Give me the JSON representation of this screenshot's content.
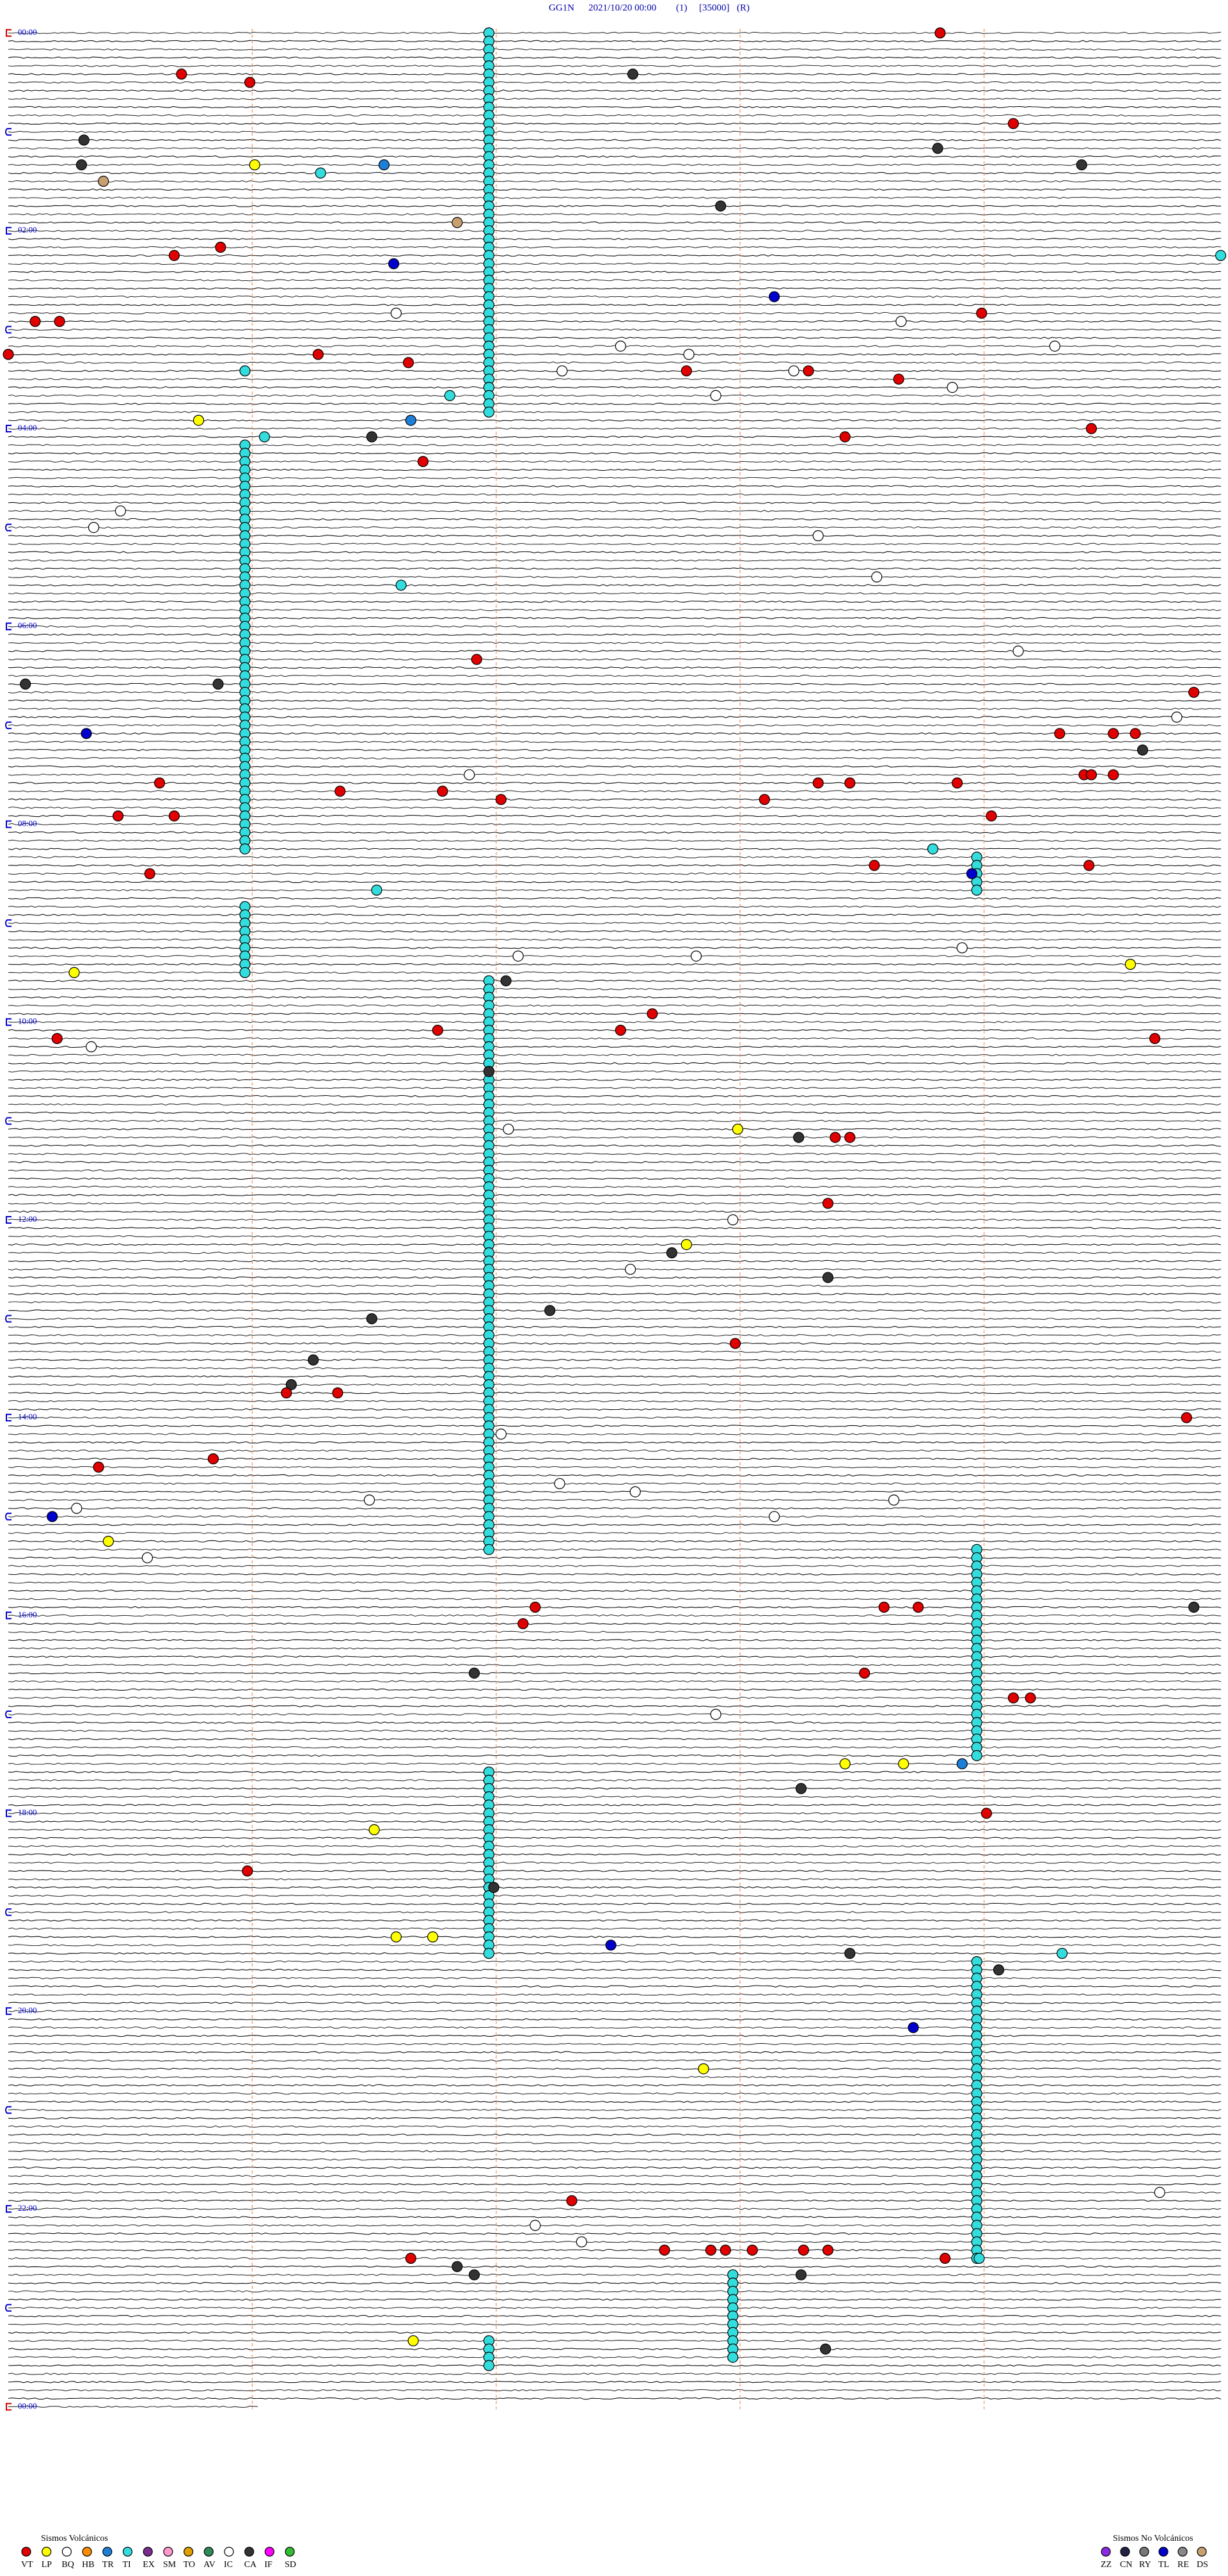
{
  "header": {
    "station": "GG1N",
    "datetime": "2021/10/20 00:00",
    "channel": "(1)",
    "scale": "[35000]",
    "mode": "(R)"
  },
  "hours": [
    "00:00",
    "02:00",
    "04:00",
    "06:00",
    "08:00",
    "10:00",
    "12:00",
    "14:00",
    "16:00",
    "18:00",
    "20:00",
    "22:00",
    "00:00"
  ],
  "legend_volcanic": {
    "title": "Sismos Volcánicos",
    "codes": [
      {
        "code": "VT",
        "color": "#e00000"
      },
      {
        "code": "LP",
        "color": "#ffff00"
      },
      {
        "code": "BQ",
        "color": "#ffffff"
      },
      {
        "code": "HB",
        "color": "#ff8c00"
      },
      {
        "code": "TR",
        "color": "#1e7fd8"
      },
      {
        "code": "TI",
        "color": "#33dddd"
      },
      {
        "code": "EX",
        "color": "#7b2d8e"
      },
      {
        "code": "SM",
        "color": "#ff99cc"
      },
      {
        "code": "TO",
        "color": "#e0a000"
      },
      {
        "code": "AV",
        "color": "#2e8b57"
      },
      {
        "code": "IC",
        "color": "#ffffff"
      },
      {
        "code": "CA",
        "color": "#333333"
      },
      {
        "code": "IF",
        "color": "#ff00ff"
      },
      {
        "code": "SD",
        "color": "#33bb33"
      }
    ]
  },
  "legend_non_volcanic": {
    "title": "Sismos No Volcánicos",
    "codes": [
      {
        "code": "ZZ",
        "color": "#8a2be2"
      },
      {
        "code": "CN",
        "color": "#222244"
      },
      {
        "code": "RY",
        "color": "#777777"
      },
      {
        "code": "TL",
        "color": "#0000cc"
      },
      {
        "code": "RE",
        "color": "#888888"
      },
      {
        "code": "DS",
        "color": "#c8a070"
      }
    ]
  },
  "runs": [
    {
      "code": "TI",
      "start": 1.97,
      "end": 231.97
    },
    {
      "code": "TI",
      "start": 250.97,
      "end": 495.97
    },
    {
      "code": "TI",
      "start": 503.97,
      "end": 523.97
    },
    {
      "code": "TI",
      "start": 530.97,
      "end": 570.97
    },
    {
      "code": "TI",
      "start": 576.97,
      "end": 921.97
    },
    {
      "code": "TI",
      "start": 923.97,
      "end": 1048.97
    },
    {
      "code": "TI",
      "start": 1056.97,
      "end": 1166.97
    },
    {
      "code": "TI",
      "start": 1173.97,
      "end": 1353.97
    },
    {
      "code": "TI",
      "start": 1362.97,
      "end": 1412.97
    },
    {
      "code": "TI",
      "start": 1401.97,
      "end": 1416.97
    }
  ],
  "events": [
    [
      "VT",
      3.82
    ],
    [
      "CA",
      27.56
    ],
    [
      "VT",
      25.71
    ],
    [
      "VT",
      30.99
    ],
    [
      "VT",
      59.12
    ],
    [
      "CA",
      65.31
    ],
    [
      "CA",
      73.81
    ],
    [
      "CA",
      80.3
    ],
    [
      "LP",
      81.01
    ],
    [
      "TR",
      81.54
    ],
    [
      "CA",
      84.4
    ],
    [
      "TI",
      86.28
    ],
    [
      "DS",
      90.39
    ],
    [
      "CA",
      107.92
    ],
    [
      "DS",
      116.84
    ],
    [
      "VT",
      135.68
    ],
    [
      "VT",
      130.87
    ],
    [
      "TL",
      141.58
    ],
    [
      "TI",
      139.97
    ],
    [
      "TL",
      163.14
    ],
    [
      "VT",
      173.99
    ],
    [
      "VT",
      175.11
    ],
    [
      "VT",
      175.21
    ],
    [
      "IC",
      171.59
    ],
    [
      "IC",
      178.66
    ],
    [
      "VT",
      195.0
    ],
    [
      "VT",
      196.27
    ],
    [
      "IC",
      192.51
    ],
    [
      "IC",
      197.79
    ],
    [
      "IC",
      194.29
    ],
    [
      "VT",
      201.64
    ],
    [
      "TI",
      205.97
    ],
    [
      "IC",
      207.27
    ],
    [
      "VT",
      207.78
    ],
    [
      "IC",
      208.22
    ],
    [
      "VT",
      208.28
    ],
    [
      "VT",
      213.65
    ],
    [
      "IC",
      218.87
    ],
    [
      "IC",
      222.9
    ],
    [
      "TI",
      221.81
    ],
    [
      "LP",
      235.78
    ],
    [
      "TR",
      236.65
    ],
    [
      "VT",
      244.44
    ],
    [
      "TI",
      246.05
    ],
    [
      "CA",
      246.49
    ],
    [
      "VT",
      248.43
    ],
    [
      "VT",
      261.7
    ],
    [
      "IC",
      290.46
    ],
    [
      "IC",
      300.35
    ],
    [
      "IC",
      308.32
    ],
    [
      "IC",
      333.56
    ],
    [
      "TI",
      336.61
    ],
    [
      "VT",
      381.92
    ],
    [
      "IC",
      379.14
    ],
    [
      "CA",
      395.07
    ],
    [
      "CA",
      395.86
    ],
    [
      "VT",
      404.86
    ],
    [
      "IC",
      419.79
    ],
    [
      "TL",
      425.32
    ],
    [
      "VT",
      429.31
    ],
    [
      "VT",
      429.53
    ],
    [
      "VT",
      429.62
    ],
    [
      "CA",
      439.65
    ],
    [
      "VT",
      455.62
    ],
    [
      "IC",
      451.89
    ],
    [
      "VT",
      461.36
    ],
    [
      "VT",
      461.78
    ],
    [
      "VT",
      458.32
    ],
    [
      "VT",
      458.45
    ],
    [
      "VT",
      458.89
    ],
    [
      "VT",
      454.41
    ],
    [
      "VT",
      454.44
    ],
    [
      "VT",
      454.53
    ],
    [
      "VT",
      467.02
    ],
    [
      "VT",
      468.1
    ],
    [
      "VT",
      475.45
    ],
    [
      "VT",
      475.68
    ],
    [
      "VT",
      479.03
    ],
    [
      "TI",
      498.79
    ],
    [
      "VT",
      508.55
    ],
    [
      "VT",
      509.43
    ],
    [
      "TL",
      513.95
    ],
    [
      "VT",
      510.58
    ],
    [
      "TI",
      521.51
    ],
    [
      "IC",
      562.09
    ],
    [
      "IC",
      562.82
    ],
    [
      "IC",
      558.91
    ],
    [
      "LP",
      569.6
    ],
    [
      "LP",
      570.27
    ],
    [
      "CA",
      577.04
    ],
    [
      "VT",
      597.64
    ],
    [
      "VT",
      606.76
    ],
    [
      "VT",
      607.51
    ],
    [
      "VT",
      610.2
    ],
    [
      "IC",
      615.34
    ],
    [
      "VT",
      614.7
    ],
    [
      "CA",
      631.97
    ],
    [
      "IC",
      667.05
    ],
    [
      "LP",
      667.99
    ],
    [
      "CA",
      673.24
    ],
    [
      "VT",
      673.39
    ],
    [
      "VT",
      673.45
    ],
    [
      "VT",
      713.36
    ],
    [
      "IC",
      722.97
    ],
    [
      "LP",
      737.78
    ],
    [
      "CA",
      742.72
    ],
    [
      "IC",
      752.55
    ],
    [
      "CA",
      758.36
    ],
    [
      "CA",
      777.22
    ],
    [
      "CA",
      781.49
    ],
    [
      "VT",
      797.98
    ],
    [
      "CA",
      806.25
    ],
    [
      "CA",
      821.16
    ],
    [
      "VT",
      826.14
    ],
    [
      "VT",
      826.35
    ],
    [
      "VT",
      844.83
    ],
    [
      "IC",
      852.02
    ],
    [
      "VT",
      865.84
    ],
    [
      "VT",
      870.37
    ],
    [
      "IC",
      882.26
    ],
    [
      "IC",
      887.57
    ],
    [
      "IC",
      891.48
    ],
    [
      "IC",
      893.63
    ],
    [
      "IC",
      895.28
    ],
    [
      "TL",
      900.18
    ],
    [
      "IC",
      903.14
    ],
    [
      "LP",
      915.41
    ],
    [
      "IC",
      925.57
    ],
    [
      "VT",
      957.16
    ],
    [
      "VT",
      958.59
    ],
    [
      "VT",
      958.73
    ],
    [
      "CA",
      959.86
    ],
    [
      "VT",
      967.11
    ],
    [
      "CA",
      996.91
    ],
    [
      "VT",
      998.51
    ],
    [
      "VT",
      1014.12
    ],
    [
      "VT",
      1014.19
    ],
    [
      "IC",
      1022.9
    ],
    [
      "LP",
      1053.43
    ],
    [
      "LP",
      1053.67
    ],
    [
      "TR",
      1053.91
    ],
    [
      "CA",
      1068.25
    ],
    [
      "VT",
      1084.01
    ],
    [
      "LP",
      1091.5
    ],
    [
      "VT",
      1115.98
    ],
    [
      "CA",
      1126.99
    ],
    [
      "TL",
      1162.47
    ],
    [
      "LP",
      1156.59
    ],
    [
      "LP",
      1156.74
    ],
    [
      "CA",
      1168.45
    ],
    [
      "TI",
      1169.32
    ],
    [
      "CA",
      1179.06
    ],
    [
      "TL",
      1213.71
    ],
    [
      "LP",
      1237.85
    ],
    [
      "IC",
      1314.72
    ],
    [
      "VT",
      1317.31
    ],
    [
      "IC",
      1332.16
    ],
    [
      "IC",
      1342.35
    ],
    [
      "VT",
      1347.69
    ],
    [
      "VT",
      1347.88
    ],
    [
      "VT",
      1347.94
    ],
    [
      "VT",
      1348.05
    ],
    [
      "VT",
      1348.26
    ],
    [
      "VT",
      1348.36
    ],
    [
      "VT",
      1351.65
    ],
    [
      "VT",
      1353.84
    ],
    [
      "TI",
      1353.98
    ],
    [
      "CA",
      1356.84
    ],
    [
      "CA",
      1361.91
    ],
    [
      "CA",
      1363.25
    ],
    [
      "LP",
      1401.66
    ],
    [
      "CA",
      1408.35
    ]
  ]
}
